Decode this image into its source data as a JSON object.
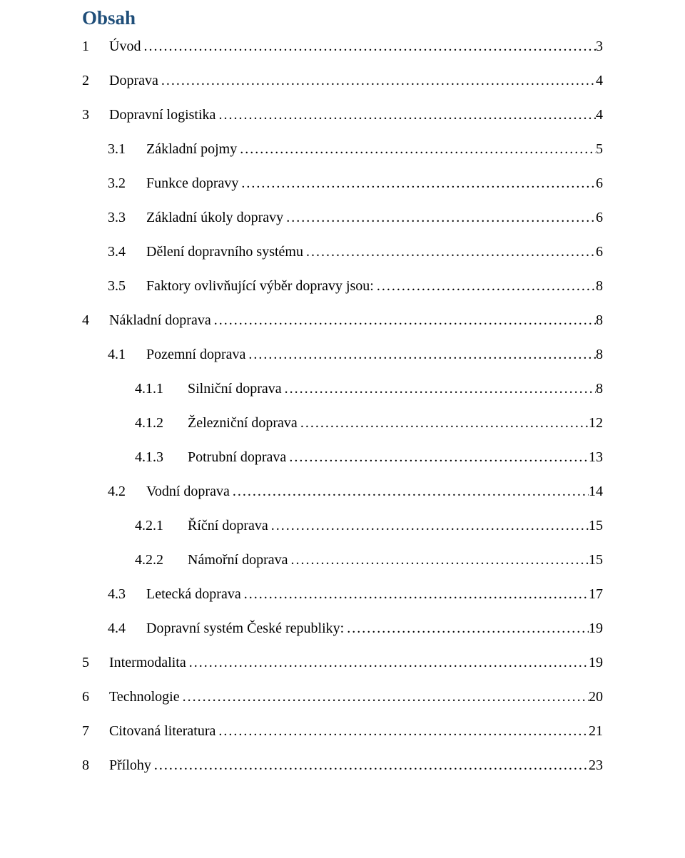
{
  "title": "Obsah",
  "title_color": "#1f4e79",
  "entries": [
    {
      "level": 1,
      "num": "1",
      "label": "Úvod",
      "page": "3"
    },
    {
      "level": 1,
      "num": "2",
      "label": "Doprava",
      "page": "4"
    },
    {
      "level": 1,
      "num": "3",
      "label": "Dopravní logistika",
      "page": "4"
    },
    {
      "level": 2,
      "num": "3.1",
      "label": "Základní pojmy",
      "page": "5"
    },
    {
      "level": 2,
      "num": "3.2",
      "label": "Funkce dopravy",
      "page": "6"
    },
    {
      "level": 2,
      "num": "3.3",
      "label": "Základní úkoly dopravy",
      "page": "6"
    },
    {
      "level": 2,
      "num": "3.4",
      "label": "Dělení dopravního systému",
      "page": "6"
    },
    {
      "level": 2,
      "num": "3.5",
      "label": "Faktory ovlivňující výběr dopravy jsou:",
      "page": "8"
    },
    {
      "level": 1,
      "num": "4",
      "label": "Nákladní doprava",
      "page": "8"
    },
    {
      "level": 2,
      "num": "4.1",
      "label": "Pozemní doprava",
      "page": "8"
    },
    {
      "level": 3,
      "num": "4.1.1",
      "label": "Silniční doprava",
      "page": "8"
    },
    {
      "level": 3,
      "num": "4.1.2",
      "label": "Železniční doprava",
      "page": "12"
    },
    {
      "level": 3,
      "num": "4.1.3",
      "label": "Potrubní doprava",
      "page": "13"
    },
    {
      "level": 2,
      "num": "4.2",
      "label": "Vodní doprava",
      "page": "14"
    },
    {
      "level": 3,
      "num": "4.2.1",
      "label": "Říční doprava",
      "page": "15"
    },
    {
      "level": 3,
      "num": "4.2.2",
      "label": "Námořní doprava",
      "page": "15"
    },
    {
      "level": 2,
      "num": "4.3",
      "label": "Letecká doprava",
      "page": "17"
    },
    {
      "level": 2,
      "num": "4.4",
      "label": "Dopravní systém České republiky:",
      "page": "19"
    },
    {
      "level": 1,
      "num": "5",
      "label": "Intermodalita",
      "page": "19"
    },
    {
      "level": 1,
      "num": "6",
      "label": "Technologie",
      "page": "20"
    },
    {
      "level": 1,
      "num": "7",
      "label": "Citovaná literatura",
      "page": "21"
    },
    {
      "level": 1,
      "num": "8",
      "label": "Přílohy",
      "page": "23"
    }
  ]
}
